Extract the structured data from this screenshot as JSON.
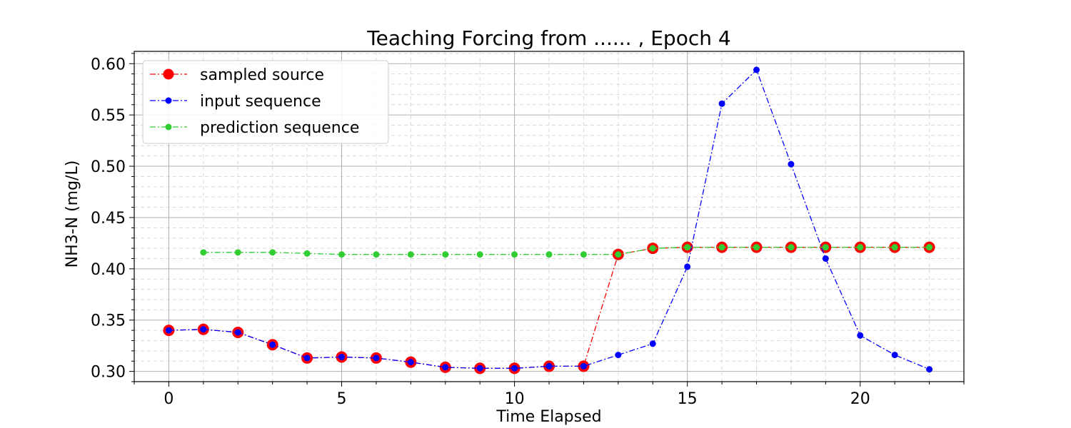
{
  "chart_data": {
    "type": "line",
    "title": "Teaching Forcing from ...... , Epoch 4",
    "xlabel": "Time Elapsed",
    "ylabel": "NH3-N (mg/L)",
    "xlim": [
      -1.0,
      23.0
    ],
    "ylim": [
      0.29,
      0.612
    ],
    "xticks": [
      0,
      5,
      10,
      15,
      20
    ],
    "yticks": [
      0.3,
      0.35,
      0.4,
      0.45,
      0.5,
      0.55,
      0.6
    ],
    "ytick_labels": [
      "0.30",
      "0.35",
      "0.40",
      "0.45",
      "0.50",
      "0.55",
      "0.60"
    ],
    "grid": true,
    "minor_grid": true,
    "legend_position": "upper-left",
    "series": [
      {
        "name": "sampled source",
        "color": "#ff0000",
        "marker_fill": "#ff0000",
        "marker": "large-circle",
        "x": [
          0,
          1,
          2,
          3,
          4,
          5,
          6,
          7,
          8,
          9,
          10,
          11,
          12,
          13,
          14,
          15,
          16,
          17,
          18,
          19,
          20,
          21,
          22
        ],
        "values": [
          0.34,
          0.341,
          0.338,
          0.326,
          0.313,
          0.314,
          0.313,
          0.309,
          0.304,
          0.303,
          0.303,
          0.305,
          0.305,
          0.414,
          0.42,
          0.421,
          0.421,
          0.421,
          0.421,
          0.421,
          0.421,
          0.421,
          0.421
        ]
      },
      {
        "name": "input sequence",
        "color": "#0000ff",
        "marker_fill": "#0000ff",
        "marker": "small-circle",
        "x": [
          0,
          1,
          2,
          3,
          4,
          5,
          6,
          7,
          8,
          9,
          10,
          11,
          12,
          13,
          14,
          15,
          16,
          17,
          18,
          19,
          20,
          21,
          22
        ],
        "values": [
          0.34,
          0.341,
          0.338,
          0.326,
          0.313,
          0.314,
          0.313,
          0.309,
          0.304,
          0.303,
          0.303,
          0.305,
          0.305,
          0.316,
          0.327,
          0.402,
          0.561,
          0.594,
          0.502,
          0.41,
          0.335,
          0.316,
          0.302
        ]
      },
      {
        "name": "prediction sequence",
        "color": "#32cd32",
        "marker_fill": "#32cd32",
        "marker": "small-circle",
        "x": [
          1,
          2,
          3,
          4,
          5,
          6,
          7,
          8,
          9,
          10,
          11,
          12,
          13,
          14,
          15,
          16,
          17,
          18,
          19,
          20,
          21,
          22
        ],
        "values": [
          0.416,
          0.416,
          0.416,
          0.415,
          0.414,
          0.414,
          0.414,
          0.414,
          0.414,
          0.414,
          0.414,
          0.414,
          0.414,
          0.42,
          0.421,
          0.421,
          0.421,
          0.421,
          0.421,
          0.421,
          0.421,
          0.421
        ]
      }
    ]
  }
}
